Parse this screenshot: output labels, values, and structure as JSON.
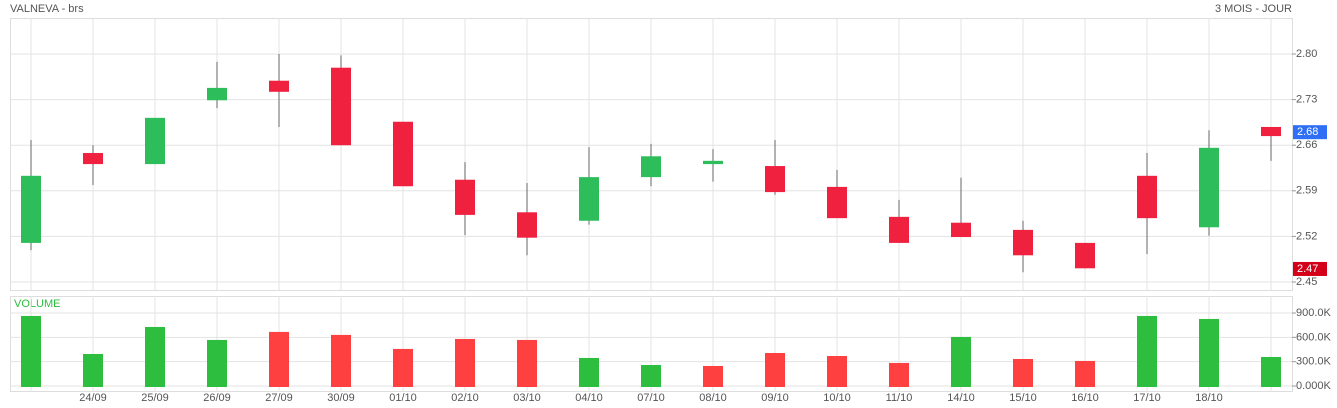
{
  "chart_data": [
    {
      "type": "candlestick",
      "title": "VALNEVA - brs",
      "subtitle": "3 MOIS - JOUR",
      "categories": [
        null,
        "24/09",
        "25/09",
        "26/09",
        "27/09",
        "30/09",
        "01/10",
        "02/10",
        "03/10",
        "04/10",
        "07/10",
        "08/10",
        "09/10",
        "10/10",
        "11/10",
        "14/10",
        "15/10",
        "16/10",
        "17/10",
        "18/10",
        null
      ],
      "open": [
        2.51,
        2.648,
        2.631,
        2.729,
        2.759,
        2.779,
        2.696,
        2.607,
        2.557,
        2.544,
        2.611,
        2.631,
        2.628,
        2.596,
        2.55,
        2.541,
        2.53,
        2.51,
        2.613,
        2.534,
        2.688
      ],
      "high": [
        2.668,
        2.66,
        2.702,
        2.788,
        2.8,
        2.798,
        2.696,
        2.634,
        2.602,
        2.657,
        2.662,
        2.654,
        2.668,
        2.622,
        2.576,
        2.61,
        2.544,
        2.51,
        2.648,
        2.683,
        2.688
      ],
      "low": [
        2.499,
        2.599,
        2.631,
        2.717,
        2.688,
        2.66,
        2.597,
        2.522,
        2.491,
        2.538,
        2.597,
        2.604,
        2.584,
        2.548,
        2.51,
        2.519,
        2.465,
        2.471,
        2.493,
        2.521,
        2.636
      ],
      "close": [
        2.613,
        2.631,
        2.702,
        2.748,
        2.742,
        2.66,
        2.597,
        2.553,
        2.518,
        2.611,
        2.643,
        2.636,
        2.588,
        2.548,
        2.51,
        2.519,
        2.491,
        2.471,
        2.548,
        2.656,
        2.674
      ],
      "up_color": "#2dbd5a",
      "down_color": "#f0203f",
      "ylim": [
        2.4377,
        2.8553
      ],
      "yticks": [
        2.45,
        2.52,
        2.59,
        2.66,
        2.73,
        {
          "value": 2.8,
          "label": "2.80"
        }
      ],
      "markers": [
        {
          "value": 2.68,
          "color": "#2f6ff5"
        },
        {
          "value": 2.47,
          "color": "#d4001a"
        }
      ],
      "grid": true
    },
    {
      "type": "bar",
      "title": "VOLUME",
      "values": [
        864000,
        395000,
        728000,
        568000,
        667000,
        630000,
        457000,
        580000,
        568000,
        346000,
        259000,
        247000,
        407000,
        370000,
        284000,
        605000,
        333000,
        309000,
        864000,
        827000,
        358000
      ],
      "colors": [
        "#2dbd3f",
        "#2dbd3f",
        "#2dbd3f",
        "#2dbd3f",
        "#ff4040",
        "#ff4040",
        "#ff4040",
        "#ff4040",
        "#ff4040",
        "#2dbd3f",
        "#2dbd3f",
        "#ff4040",
        "#ff4040",
        "#ff4040",
        "#ff4040",
        "#2dbd3f",
        "#ff4040",
        "#ff4040",
        "#2dbd3f",
        "#2dbd3f",
        "#2dbd3f"
      ],
      "ylim": [
        0,
        1110000
      ],
      "yticks": [
        {
          "value": 0,
          "label": "0.000K"
        },
        {
          "value": 300000,
          "label": "300.0K"
        },
        {
          "value": 600000,
          "label": "600.0K"
        },
        {
          "value": 900000,
          "label": "900.0K"
        }
      ],
      "grid": true
    }
  ]
}
